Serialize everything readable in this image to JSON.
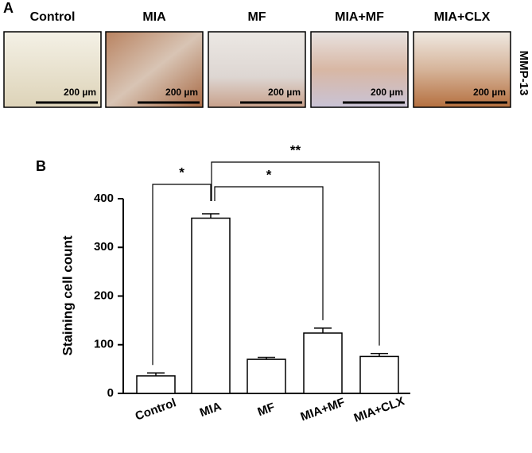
{
  "panel_a": {
    "label": "A",
    "side_label": "MMP-13",
    "images": [
      {
        "title": "Control",
        "scale": "200 µm"
      },
      {
        "title": "MIA",
        "scale": "200 µm"
      },
      {
        "title": "MF",
        "scale": "200 µm"
      },
      {
        "title": "MIA+MF",
        "scale": "200 µm"
      },
      {
        "title": "MIA+CLX",
        "scale": "200 µm"
      }
    ]
  },
  "chart_data": {
    "type": "bar",
    "panel_label": "B",
    "y_label": "Staining cell count",
    "categories": [
      "Control",
      "MIA",
      "MF",
      "MIA+MF",
      "MIA+CLX"
    ],
    "values": [
      36,
      360,
      70,
      124,
      76
    ],
    "errors": [
      6,
      9,
      4,
      10,
      6
    ],
    "color": "#ffffff",
    "ylim": [
      0,
      400
    ],
    "yticks": [
      0,
      100,
      200,
      300,
      400
    ],
    "annotations": [
      "*",
      "*",
      "**"
    ]
  }
}
